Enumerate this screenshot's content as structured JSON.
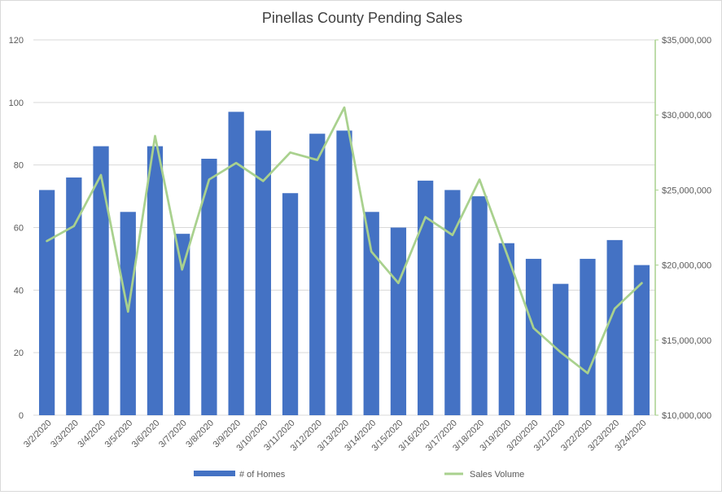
{
  "chart_data": {
    "type": "bar",
    "title": "Pinellas County Pending Sales",
    "categories": [
      "3/2/2020",
      "3/3/2020",
      "3/4/2020",
      "3/5/2020",
      "3/6/2020",
      "3/7/2020",
      "3/8/2020",
      "3/9/2020",
      "3/10/2020",
      "3/11/2020",
      "3/12/2020",
      "3/13/2020",
      "3/14/2020",
      "3/15/2020",
      "3/16/2020",
      "3/17/2020",
      "3/18/2020",
      "3/19/2020",
      "3/20/2020",
      "3/21/2020",
      "3/22/2020",
      "3/23/2020",
      "3/24/2020"
    ],
    "series": [
      {
        "name": "# of Homes",
        "type": "bar",
        "axis": "left",
        "color": "#4472c4",
        "values": [
          72,
          76,
          86,
          65,
          86,
          58,
          82,
          97,
          91,
          71,
          90,
          91,
          65,
          60,
          75,
          72,
          70,
          55,
          50,
          42,
          50,
          56,
          48
        ]
      },
      {
        "name": "Sales Volume",
        "type": "line",
        "axis": "right",
        "color": "#a9d18e",
        "values": [
          21600000,
          22600000,
          26000000,
          16900000,
          28600000,
          19700000,
          25700000,
          26800000,
          25600000,
          27500000,
          27000000,
          30500000,
          20900000,
          18800000,
          23200000,
          22000000,
          25700000,
          20800000,
          15800000,
          14200000,
          12800000,
          17100000,
          18800000
        ]
      }
    ],
    "y_left": {
      "ylim": [
        0,
        120
      ],
      "ticks": [
        0,
        20,
        40,
        60,
        80,
        100,
        120
      ],
      "tick_labels": [
        "0",
        "20",
        "40",
        "60",
        "80",
        "100",
        "120"
      ]
    },
    "y_right": {
      "ylim": [
        10000000,
        35000000
      ],
      "ticks": [
        10000000,
        15000000,
        20000000,
        25000000,
        30000000,
        35000000
      ],
      "tick_labels": [
        "$10,000,000",
        "$15,000,000",
        "$20,000,000",
        "$25,000,000",
        "$30,000,000",
        "$35,000,000"
      ]
    },
    "xlabel": "",
    "ylabel": "",
    "grid": true,
    "legend": "bottom",
    "colors": {
      "grid": "#d9d9d9",
      "text": "#595959",
      "title": "#404040",
      "right_axis_line": "#a9d18e"
    }
  }
}
